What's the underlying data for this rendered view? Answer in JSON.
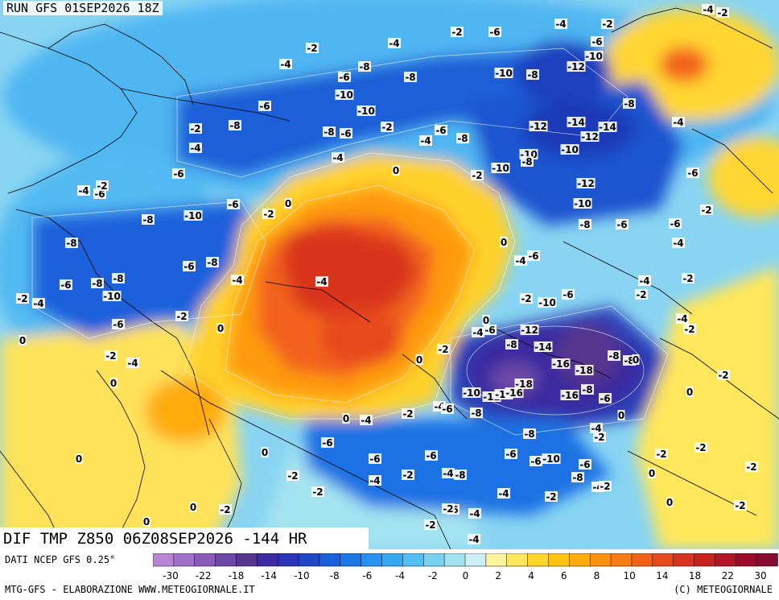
{
  "header": {
    "run_label": "RUN GFS 01SEP2026 18Z"
  },
  "variable_title": "DIF TMP Z850 06Z08SEP2026 -144 HR",
  "footer": {
    "data_source": "DATI NCEP GFS 0.25°",
    "elaboration": "MTG-GFS - ELABORAZIONE WWW.METEOGIORNALE.IT",
    "copyright": "(C) METEOGIORNALE"
  },
  "legend": {
    "colors": [
      "#b784d6",
      "#a070c8",
      "#8a5cb8",
      "#7048a8",
      "#55358e",
      "#3c2aa0",
      "#2c35b8",
      "#1f47c8",
      "#1a5fdc",
      "#1f78e8",
      "#2790f0",
      "#36a8f2",
      "#52bff2",
      "#76d2f0",
      "#a2e2ef",
      "#cdeff4",
      "#fff3a0",
      "#ffe65a",
      "#ffd629",
      "#ffc212",
      "#ffab0a",
      "#ff920c",
      "#fa7a14",
      "#f26218",
      "#e84a1c",
      "#da341e",
      "#c8221f",
      "#b31426",
      "#9c0c2a",
      "#880a30"
    ],
    "ticks": [
      "-30",
      "-22",
      "-18",
      "-14",
      "-10",
      "-8",
      "-6",
      "-4",
      "-2",
      "0",
      "2",
      "4",
      "6",
      "8",
      "10",
      "14",
      "18",
      "22",
      "30"
    ]
  },
  "map": {
    "contour_labels": [
      [
        "-4",
        880,
        12
      ],
      [
        "-2",
        898,
        16
      ],
      [
        "-2",
        755,
        30
      ],
      [
        "-4",
        697,
        30
      ],
      [
        "-2",
        568,
        40
      ],
      [
        "-6",
        615,
        40
      ],
      [
        "-2",
        388,
        60
      ],
      [
        "-4",
        490,
        54
      ],
      [
        "-6",
        742,
        52
      ],
      [
        "-10",
        738,
        70
      ],
      [
        "-4",
        355,
        80
      ],
      [
        "-8",
        453,
        83
      ],
      [
        "-12",
        716,
        83
      ],
      [
        "-6",
        428,
        96
      ],
      [
        "-8",
        510,
        96
      ],
      [
        "-10",
        626,
        91
      ],
      [
        "-8",
        662,
        93
      ],
      [
        "-10",
        428,
        118
      ],
      [
        "-10",
        455,
        138
      ],
      [
        "-6",
        329,
        132
      ],
      [
        "-8",
        782,
        129
      ],
      [
        "-2",
        243,
        160
      ],
      [
        "-8",
        292,
        156
      ],
      [
        "-8",
        409,
        164
      ],
      [
        "-6",
        430,
        166
      ],
      [
        "-2",
        481,
        158
      ],
      [
        "-6",
        548,
        162
      ],
      [
        "-12",
        669,
        157
      ],
      [
        "-14",
        716,
        152
      ],
      [
        "-14",
        755,
        158
      ],
      [
        "-12",
        733,
        170
      ],
      [
        "-4",
        843,
        152
      ],
      [
        "-4",
        243,
        184
      ],
      [
        "-4",
        529,
        175
      ],
      [
        "-8",
        575,
        172
      ],
      [
        "-4",
        420,
        196
      ],
      [
        "-10",
        657,
        192
      ],
      [
        "-8",
        655,
        201
      ],
      [
        "-10",
        708,
        186
      ],
      [
        "0",
        492,
        212
      ],
      [
        "-2",
        593,
        218
      ],
      [
        "-10",
        622,
        209
      ],
      [
        "-6",
        222,
        216
      ],
      [
        "-6",
        861,
        215
      ],
      [
        "-4",
        104,
        237
      ],
      [
        "-6",
        124,
        241
      ],
      [
        "-2",
        127,
        231
      ],
      [
        "-12",
        728,
        228
      ],
      [
        "0",
        358,
        253
      ],
      [
        "-6",
        290,
        254
      ],
      [
        "-10",
        724,
        253
      ],
      [
        "-2",
        334,
        266
      ],
      [
        "-10",
        240,
        268
      ],
      [
        "-8",
        184,
        273
      ],
      [
        "-6",
        773,
        279
      ],
      [
        "-8",
        727,
        279
      ],
      [
        "-6",
        839,
        278
      ],
      [
        "-2",
        878,
        261
      ],
      [
        "-8",
        89,
        302
      ],
      [
        "0",
        626,
        301
      ],
      [
        "-4",
        843,
        302
      ],
      [
        "-6",
        663,
        318
      ],
      [
        "-4",
        647,
        324
      ],
      [
        "-6",
        235,
        331
      ],
      [
        "-8",
        264,
        326
      ],
      [
        "-2",
        855,
        346
      ],
      [
        "-4",
        400,
        350
      ],
      [
        "-6",
        82,
        354
      ],
      [
        "-8",
        121,
        352
      ],
      [
        "-8",
        147,
        346
      ],
      [
        "-4",
        295,
        348
      ],
      [
        "-4",
        801,
        349
      ],
      [
        "-10",
        139,
        368
      ],
      [
        "-2",
        28,
        371
      ],
      [
        "-4",
        48,
        377
      ],
      [
        "-2",
        654,
        371
      ],
      [
        "-10",
        680,
        376
      ],
      [
        "-6",
        706,
        366
      ],
      [
        "-2",
        797,
        366
      ],
      [
        "-2",
        226,
        393
      ],
      [
        "0",
        274,
        408
      ],
      [
        "-6",
        147,
        403
      ],
      [
        "0",
        604,
        398
      ],
      [
        "-4",
        594,
        413
      ],
      [
        "-6",
        609,
        410
      ],
      [
        "-12",
        658,
        410
      ],
      [
        "-4",
        848,
        396
      ],
      [
        "-2",
        857,
        409
      ],
      [
        "0",
        28,
        423
      ],
      [
        "-8",
        636,
        428
      ],
      [
        "-14",
        675,
        431
      ],
      [
        "-2",
        551,
        434
      ],
      [
        "0",
        521,
        447
      ],
      [
        "-2",
        138,
        442
      ],
      [
        "-4",
        165,
        451
      ],
      [
        "-8",
        763,
        442
      ],
      [
        "-8",
        782,
        448
      ],
      [
        "0",
        790,
        447
      ],
      [
        "-16",
        697,
        452
      ],
      [
        "-18",
        726,
        460
      ],
      [
        "-2",
        899,
        466
      ],
      [
        "0",
        141,
        476
      ],
      [
        "-18",
        651,
        477
      ],
      [
        "-8",
        730,
        484
      ],
      [
        "-16",
        708,
        491
      ],
      [
        "0",
        857,
        487
      ],
      [
        "-10",
        586,
        488
      ],
      [
        "-12",
        611,
        493
      ],
      [
        "-14",
        626,
        490
      ],
      [
        "-16",
        639,
        488
      ],
      [
        "-4",
        546,
        505
      ],
      [
        "-6",
        556,
        508
      ],
      [
        "-6",
        752,
        495
      ],
      [
        "-8",
        592,
        513
      ],
      [
        "-2",
        507,
        514
      ],
      [
        "0",
        430,
        520
      ],
      [
        "-4",
        455,
        522
      ],
      [
        "0",
        772,
        516
      ],
      [
        "-4",
        741,
        532
      ],
      [
        "-2",
        745,
        543
      ],
      [
        "-8",
        658,
        539
      ],
      [
        "-6",
        407,
        550
      ],
      [
        "0",
        329,
        562
      ],
      [
        "-6",
        536,
        566
      ],
      [
        "-6",
        466,
        570
      ],
      [
        "-6",
        635,
        564
      ],
      [
        "-10",
        685,
        570
      ],
      [
        "-6",
        666,
        573
      ],
      [
        "-2",
        822,
        564
      ],
      [
        "-2",
        871,
        556
      ],
      [
        "0",
        98,
        570
      ],
      [
        "-6",
        727,
        577
      ],
      [
        "-8",
        718,
        593
      ],
      [
        "-2",
        934,
        580
      ],
      [
        "0",
        810,
        588
      ],
      [
        "-4",
        557,
        588
      ],
      [
        "-4",
        466,
        597
      ],
      [
        "-2",
        507,
        590
      ],
      [
        "-8",
        572,
        590
      ],
      [
        "-2",
        364,
        591
      ],
      [
        "-4",
        743,
        605
      ],
      [
        "-2",
        752,
        604
      ],
      [
        "-4",
        626,
        613
      ],
      [
        "-2",
        685,
        617
      ],
      [
        "-2",
        395,
        611
      ],
      [
        "0",
        832,
        624
      ],
      [
        "-2",
        920,
        628
      ],
      [
        "0",
        240,
        630
      ],
      [
        "-2",
        280,
        633
      ],
      [
        "-6",
        563,
        633
      ],
      [
        "-2",
        557,
        632
      ],
      [
        "-4",
        590,
        638
      ],
      [
        "0",
        182,
        648
      ],
      [
        "-2",
        535,
        652
      ],
      [
        "-4",
        589,
        670
      ]
    ]
  }
}
